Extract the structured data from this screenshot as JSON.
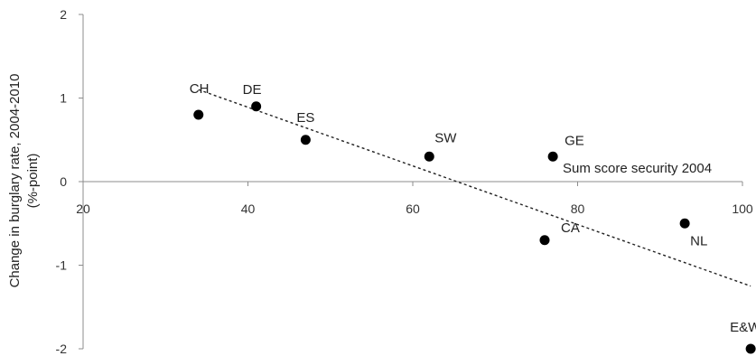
{
  "chart_data": {
    "type": "scatter",
    "title": "",
    "xlabel": "Sum score security 2004",
    "ylabel_line1": "Change in burglary rate, 2004-2010",
    "ylabel_line2": "(%-point)",
    "xlim": [
      20,
      100
    ],
    "ylim": [
      -2,
      2
    ],
    "x_ticks": [
      "20",
      "40",
      "60",
      "80",
      "100"
    ],
    "y_ticks": [
      "2",
      "1",
      "0",
      "-1",
      "-2"
    ],
    "points": [
      {
        "label": "CH",
        "x": 34,
        "y": 0.8
      },
      {
        "label": "DE",
        "x": 41,
        "y": 0.9
      },
      {
        "label": "ES",
        "x": 47,
        "y": 0.5
      },
      {
        "label": "SW",
        "x": 62,
        "y": 0.3
      },
      {
        "label": "GE",
        "x": 77,
        "y": 0.3
      },
      {
        "label": "CA",
        "x": 76,
        "y": -0.7
      },
      {
        "label": "NL",
        "x": 93,
        "y": -0.5
      },
      {
        "label": "E&W",
        "x": 101,
        "y": -2.0
      }
    ],
    "trendline": {
      "x": [
        34,
        101
      ],
      "y": [
        1.1,
        -1.25
      ],
      "style": "dashed"
    },
    "grid": false,
    "legend": "none"
  }
}
